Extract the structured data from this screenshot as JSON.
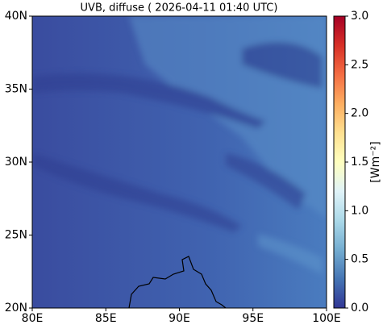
{
  "chart_data": {
    "type": "map",
    "title": "UVB, diffuse ( 2026-04-11 01:40 UTC)",
    "xlim": [
      80,
      100
    ],
    "xticks": [
      {
        "value": 80,
        "label": "80E"
      },
      {
        "value": 85,
        "label": "85E"
      },
      {
        "value": 90,
        "label": "90E"
      },
      {
        "value": 95,
        "label": "95E"
      },
      {
        "value": 100,
        "label": "100E"
      }
    ],
    "ylim": [
      20,
      40
    ],
    "yticks": [
      {
        "value": 20,
        "label": "20N"
      },
      {
        "value": 25,
        "label": "25N"
      },
      {
        "value": 30,
        "label": "30N"
      },
      {
        "value": 35,
        "label": "35N"
      },
      {
        "value": 40,
        "label": "40N"
      }
    ],
    "colorbar": {
      "label": "[Wm⁻²]",
      "clim": [
        0,
        3
      ],
      "ticks": [
        {
          "value": 0,
          "label": "0.0"
        },
        {
          "value": 0.5,
          "label": "0.5"
        },
        {
          "value": 1,
          "label": "1.0"
        },
        {
          "value": 1.5,
          "label": "1.5"
        },
        {
          "value": 2,
          "label": "2.0"
        },
        {
          "value": 2.5,
          "label": "2.5"
        },
        {
          "value": 3,
          "label": "3.0"
        }
      ],
      "colormap": [
        "#313695",
        "#4575b4",
        "#74add1",
        "#abd9e9",
        "#e0f3f8",
        "#ffffbf",
        "#fee090",
        "#fdae61",
        "#f46d43",
        "#d73027",
        "#a50026"
      ]
    }
  }
}
